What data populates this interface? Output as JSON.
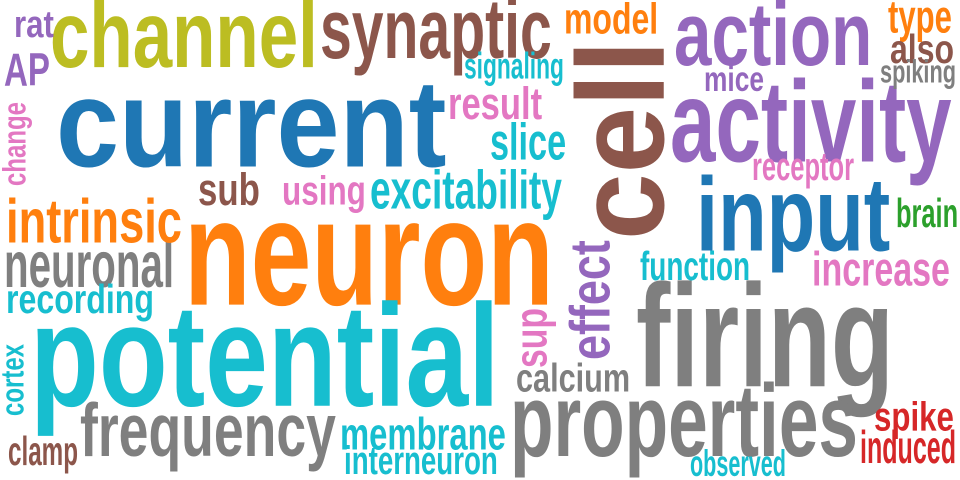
{
  "colors": {
    "orange": "#ff7f0e",
    "blue": "#1f77b4",
    "cyan": "#17becf",
    "gray": "#7f7f7f",
    "purple": "#9467bd",
    "brown": "#8c564b",
    "olive": "#bcbd22",
    "pink": "#e377c2",
    "green": "#2ca02c",
    "red": "#d62728"
  },
  "words": {
    "neuron": "neuron",
    "potential": "potential",
    "firing": "firing",
    "current": "current",
    "activity": "activity",
    "cell": "cell",
    "input": "input",
    "properties": "properties",
    "channel": "channel",
    "synaptic": "synaptic",
    "action": "action",
    "frequency": "frequency",
    "neuronal": "neuronal",
    "intrinsic": "intrinsic",
    "excitability": "excitability",
    "membrane": "membrane",
    "interneuron": "interneuron",
    "recording": "recording",
    "increase": "increase",
    "function": "function",
    "calcium": "calcium",
    "effect": "effect",
    "slice": "slice",
    "result": "result",
    "receptor": "receptor",
    "spike": "spike",
    "induced": "induced",
    "observed": "observed",
    "clamp": "clamp",
    "using": "using",
    "sub": "sub",
    "sup": "sup",
    "model": "model",
    "signaling": "signaling",
    "mice": "mice",
    "type": "type",
    "also": "also",
    "spiking": "spiking",
    "brain": "brain",
    "rat": "rat",
    "ap": "AP",
    "change": "change",
    "cortex": "cortex"
  }
}
